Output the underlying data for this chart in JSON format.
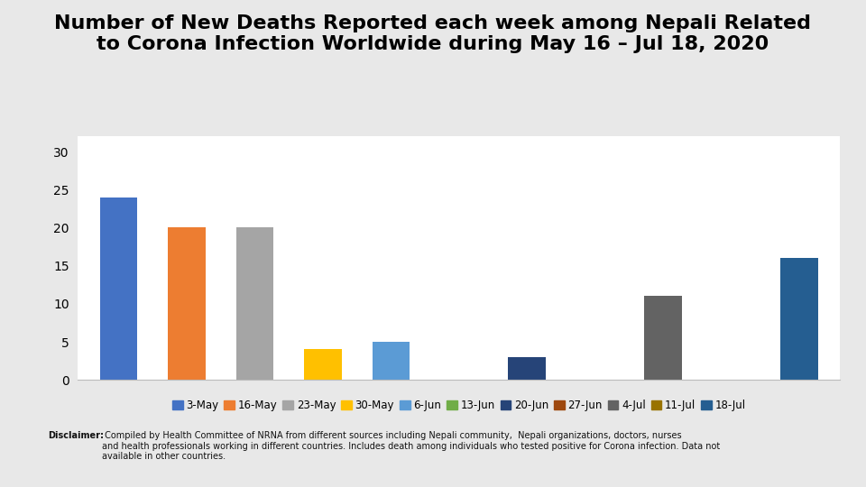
{
  "title_line1": "Number of New Deaths Reported each week among Nepali Related",
  "title_line2": "to Corona Infection Worldwide during May 16 – Jul 18, 2020",
  "categories": [
    "3-May",
    "16-May",
    "23-May",
    "30-May",
    "6-Jun",
    "13-Jun",
    "20-Jun",
    "27-Jun",
    "4-Jul",
    "11-Jul",
    "18-Jul"
  ],
  "values": [
    24,
    20,
    20,
    4,
    5,
    0,
    3,
    0,
    11,
    0,
    16
  ],
  "bar_colors": [
    "#4472C4",
    "#ED7D31",
    "#A5A5A5",
    "#FFC000",
    "#5B9BD5",
    "#70AD47",
    "#264478",
    "#9E480E",
    "#636363",
    "#997300",
    "#255E91"
  ],
  "ylim": [
    0,
    32
  ],
  "yticks": [
    0,
    5,
    10,
    15,
    20,
    25,
    30
  ],
  "outer_bg": "#E8E8E8",
  "inner_bg": "#FFFFFF",
  "disclaimer_bold": "Disclaimer:",
  "disclaimer_rest": " Compiled by Health Committee of NRNA from different sources including Nepali community,  Nepali organizations, doctors, nurses\nand health professionals working in different countries. Includes death among individuals who tested positive for Corona infection. Data not\navailable in other countries.",
  "title_fontsize": 16,
  "tick_fontsize": 10,
  "legend_fontsize": 8.5,
  "bar_width": 0.55
}
